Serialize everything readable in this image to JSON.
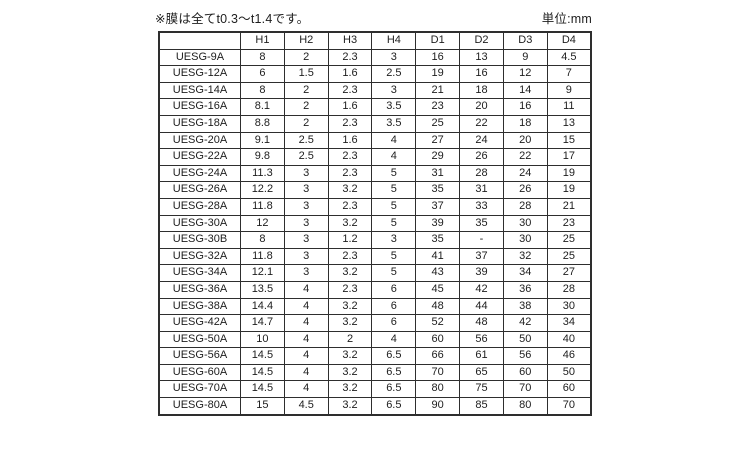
{
  "page": {
    "note": "※膜は全てt0.3〜t1.4です。",
    "unit_label": "単位:mm"
  },
  "table": {
    "headers": [
      "",
      "H1",
      "H2",
      "H3",
      "H4",
      "D1",
      "D2",
      "D3",
      "D4"
    ],
    "rows": [
      [
        "UESG-9A",
        "8",
        "2",
        "2.3",
        "3",
        "16",
        "13",
        "9",
        "4.5"
      ],
      [
        "UESG-12A",
        "6",
        "1.5",
        "1.6",
        "2.5",
        "19",
        "16",
        "12",
        "7"
      ],
      [
        "UESG-14A",
        "8",
        "2",
        "2.3",
        "3",
        "21",
        "18",
        "14",
        "9"
      ],
      [
        "UESG-16A",
        "8.1",
        "2",
        "1.6",
        "3.5",
        "23",
        "20",
        "16",
        "11"
      ],
      [
        "UESG-18A",
        "8.8",
        "2",
        "2.3",
        "3.5",
        "25",
        "22",
        "18",
        "13"
      ],
      [
        "UESG-20A",
        "9.1",
        "2.5",
        "1.6",
        "4",
        "27",
        "24",
        "20",
        "15"
      ],
      [
        "UESG-22A",
        "9.8",
        "2.5",
        "2.3",
        "4",
        "29",
        "26",
        "22",
        "17"
      ],
      [
        "UESG-24A",
        "11.3",
        "3",
        "2.3",
        "5",
        "31",
        "28",
        "24",
        "19"
      ],
      [
        "UESG-26A",
        "12.2",
        "3",
        "3.2",
        "5",
        "35",
        "31",
        "26",
        "19"
      ],
      [
        "UESG-28A",
        "11.8",
        "3",
        "2.3",
        "5",
        "37",
        "33",
        "28",
        "21"
      ],
      [
        "UESG-30A",
        "12",
        "3",
        "3.2",
        "5",
        "39",
        "35",
        "30",
        "23"
      ],
      [
        "UESG-30B",
        "8",
        "3",
        "1.2",
        "3",
        "35",
        "-",
        "30",
        "25"
      ],
      [
        "UESG-32A",
        "11.8",
        "3",
        "2.3",
        "5",
        "41",
        "37",
        "32",
        "25"
      ],
      [
        "UESG-34A",
        "12.1",
        "3",
        "3.2",
        "5",
        "43",
        "39",
        "34",
        "27"
      ],
      [
        "UESG-36A",
        "13.5",
        "4",
        "2.3",
        "6",
        "45",
        "42",
        "36",
        "28"
      ],
      [
        "UESG-38A",
        "14.4",
        "4",
        "3.2",
        "6",
        "48",
        "44",
        "38",
        "30"
      ],
      [
        "UESG-42A",
        "14.7",
        "4",
        "3.2",
        "6",
        "52",
        "48",
        "42",
        "34"
      ],
      [
        "UESG-50A",
        "10",
        "4",
        "2",
        "4",
        "60",
        "56",
        "50",
        "40"
      ],
      [
        "UESG-56A",
        "14.5",
        "4",
        "3.2",
        "6.5",
        "66",
        "61",
        "56",
        "46"
      ],
      [
        "UESG-60A",
        "14.5",
        "4",
        "3.2",
        "6.5",
        "70",
        "65",
        "60",
        "50"
      ],
      [
        "UESG-70A",
        "14.5",
        "4",
        "3.2",
        "6.5",
        "80",
        "75",
        "70",
        "60"
      ],
      [
        "UESG-80A",
        "15",
        "4.5",
        "3.2",
        "6.5",
        "90",
        "85",
        "80",
        "70"
      ]
    ]
  },
  "colors": {
    "background": "#ffffff",
    "border": "#2e2e2e",
    "text": "#1d1d1d"
  }
}
